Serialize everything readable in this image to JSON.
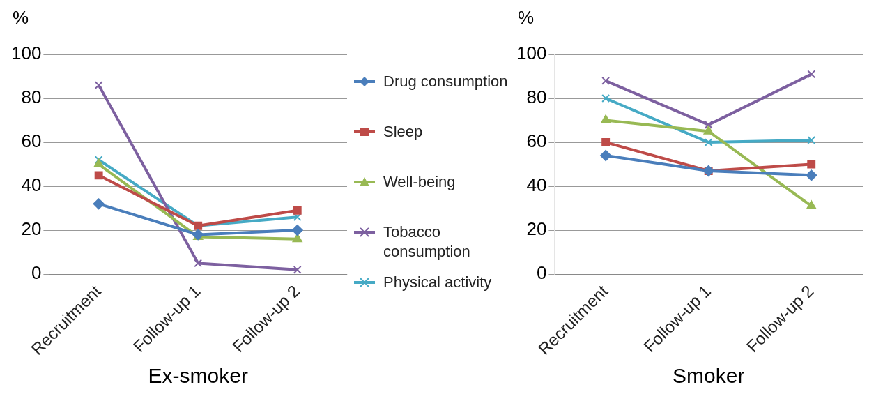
{
  "chart_data": [
    {
      "type": "line",
      "xlabel": "Ex-smoker",
      "ylabel": "%",
      "categories": [
        "Recruitment",
        "Follow-up 1",
        "Follow-up 2"
      ],
      "ylim": [
        0,
        100
      ],
      "yticks": [
        0,
        20,
        40,
        60,
        80,
        100
      ],
      "grid": "y",
      "legend": "right",
      "series": [
        {
          "name": "Drug consumption",
          "color": "#4a7ebb",
          "marker": "diamond",
          "values": [
            32,
            18,
            20
          ]
        },
        {
          "name": "Sleep",
          "color": "#be4b48",
          "marker": "square",
          "values": [
            45,
            22,
            29
          ]
        },
        {
          "name": "Well-being",
          "color": "#98b954",
          "marker": "triangle",
          "values": [
            50,
            17,
            16
          ]
        },
        {
          "name": "Tobacco consumption",
          "color": "#7d60a0",
          "marker": "cross",
          "values": [
            86,
            5,
            2
          ]
        },
        {
          "name": "Physical activity",
          "color": "#46aac5",
          "marker": "cross",
          "values": [
            52,
            22,
            26
          ]
        }
      ]
    },
    {
      "type": "line",
      "xlabel": "Smoker",
      "ylabel": "%",
      "categories": [
        "Recruitment",
        "Follow-up 1",
        "Follow-up 2"
      ],
      "ylim": [
        0,
        100
      ],
      "yticks": [
        0,
        20,
        40,
        60,
        80,
        100
      ],
      "grid": "y",
      "series": [
        {
          "color": "#4a7ebb",
          "marker": "diamond",
          "values": [
            54,
            47,
            45
          ]
        },
        {
          "color": "#be4b48",
          "marker": "square",
          "values": [
            60,
            47,
            50
          ]
        },
        {
          "color": "#98b954",
          "marker": "triangle",
          "values": [
            70,
            65,
            31
          ]
        },
        {
          "color": "#7d60a0",
          "marker": "cross",
          "values": [
            88,
            68,
            91
          ]
        },
        {
          "color": "#46aac5",
          "marker": "cross",
          "values": [
            80,
            60,
            61
          ]
        }
      ]
    }
  ]
}
